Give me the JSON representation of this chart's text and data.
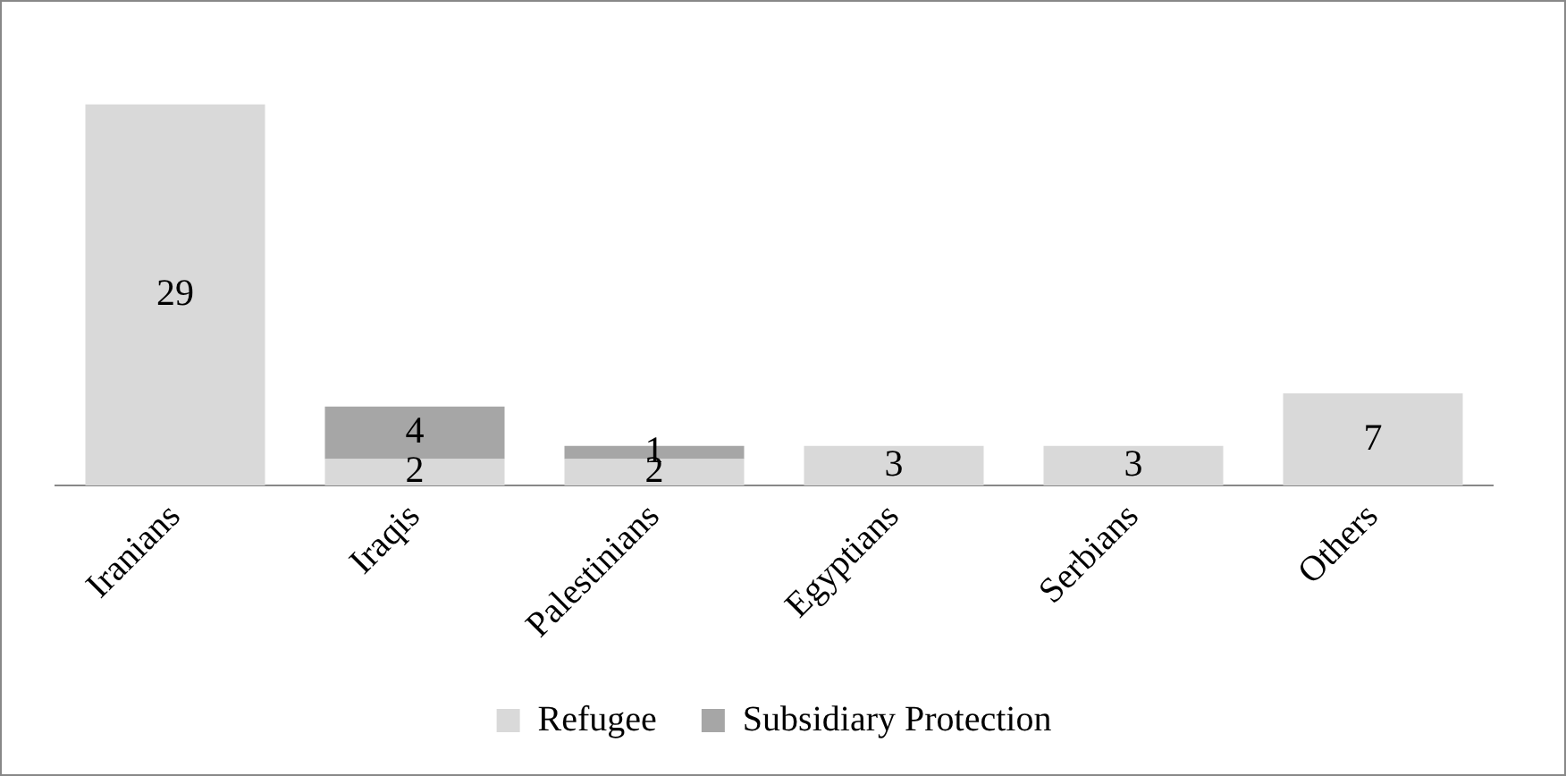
{
  "chart_data": {
    "type": "bar",
    "stacked": true,
    "categories": [
      "Iranians",
      "Iraqis",
      "Palestinians",
      "Egyptians",
      "Serbians",
      "Others"
    ],
    "series": [
      {
        "name": "Refugee",
        "color": "#d9d9d9",
        "values": [
          29,
          2,
          2,
          3,
          3,
          7
        ]
      },
      {
        "name": "Subsidiary Protection",
        "color": "#a6a6a6",
        "values": [
          null,
          4,
          1,
          null,
          null,
          null
        ]
      }
    ],
    "data_labels": true,
    "legend": "bottom",
    "grid": false
  }
}
